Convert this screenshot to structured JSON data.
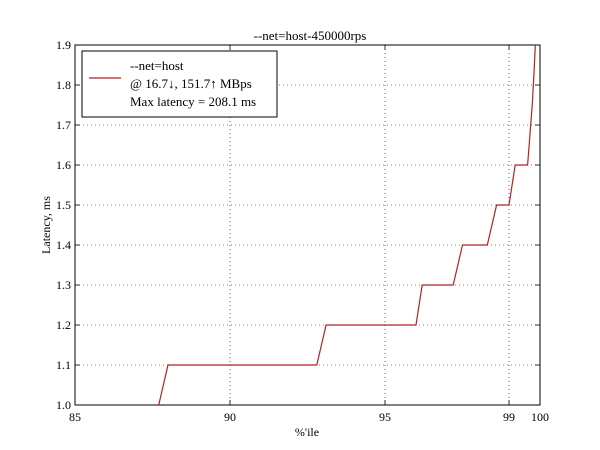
{
  "chart_data": {
    "type": "line",
    "title": "--net=host-450000rps",
    "xlabel": "%'ile",
    "ylabel": "Latency, ms",
    "xlim": [
      85,
      100
    ],
    "ylim": [
      1.0,
      1.9
    ],
    "x_ticks": [
      85,
      90,
      95,
      99,
      100
    ],
    "x_tick_labels": [
      "85",
      "90",
      "95",
      "99",
      "100"
    ],
    "y_ticks": [
      1.0,
      1.1,
      1.2,
      1.3,
      1.4,
      1.5,
      1.6,
      1.7,
      1.8,
      1.9
    ],
    "y_tick_labels": [
      "1.0",
      "1.1",
      "1.2",
      "1.3",
      "1.4",
      "1.5",
      "1.6",
      "1.7",
      "1.8",
      "1.9"
    ],
    "grid": true,
    "legend_position": "top-left",
    "series": [
      {
        "name": "--net=host",
        "color": "#b22222",
        "x": [
          87.7,
          88.0,
          92.8,
          93.1,
          96.0,
          96.2,
          97.2,
          97.5,
          98.3,
          98.6,
          99.0,
          99.2,
          99.5,
          99.6,
          99.65,
          99.7,
          99.75,
          99.8,
          99.85
        ],
        "y": [
          1.0,
          1.1,
          1.1,
          1.2,
          1.2,
          1.3,
          1.3,
          1.4,
          1.4,
          1.5,
          1.5,
          1.6,
          1.6,
          1.6,
          1.65,
          1.7,
          1.75,
          1.82,
          1.9
        ]
      }
    ],
    "legend": {
      "label_line1": "--net=host",
      "label_line2": "@ 16.7↓, 151.7↑ MBps",
      "label_line3": "Max latency = 208.1 ms"
    }
  }
}
